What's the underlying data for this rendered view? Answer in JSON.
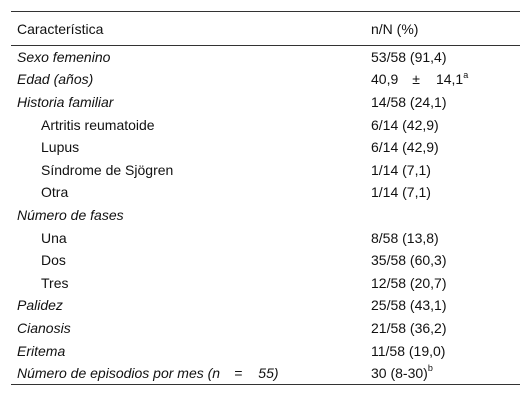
{
  "header": {
    "col1": "Característica",
    "col2": "n/N (%)"
  },
  "rows": [
    {
      "label": "Sexo femenino",
      "value": "53/58 (91,4)"
    },
    {
      "label": "Edad (años)",
      "value_main": "40,9",
      "value_pm": "±",
      "value_sd": "14,1",
      "value_sup": "a"
    },
    {
      "label": "Historia familiar",
      "value": "14/58 (24,1)"
    },
    {
      "label": "Artritis reumatoide",
      "value": "6/14 (42,9)"
    },
    {
      "label": "Lupus",
      "value": "6/14 (42,9)"
    },
    {
      "label": "Síndrome de Sjögren",
      "value": "1/14 (7,1)"
    },
    {
      "label": "Otra",
      "value": "1/14 (7,1)"
    },
    {
      "label": "Número de fases",
      "value": ""
    },
    {
      "label": "Una",
      "value": "8/58 (13,8)"
    },
    {
      "label": "Dos",
      "value": "35/58 (60,3)"
    },
    {
      "label": "Tres",
      "value": "12/58 (20,7)"
    },
    {
      "label": "Palidez",
      "value": "25/58 (43,1)"
    },
    {
      "label": "Cianosis",
      "value": "21/58 (36,2)"
    },
    {
      "label": "Eritema",
      "value": "11/58 (19,0)"
    },
    {
      "label_main": "Número de episodios por mes (n",
      "label_eq": "=",
      "label_n": "55)",
      "value_main": "30 (8-30)",
      "value_sup": "b"
    }
  ]
}
